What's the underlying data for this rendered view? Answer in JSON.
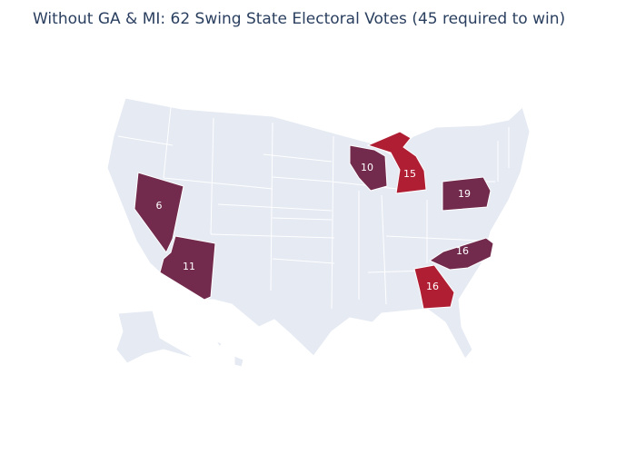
{
  "title": "Without GA & MI: 62 Swing State Electoral Votes (45 required to win)",
  "colors": {
    "background": "#ffffff",
    "base_state": "#e5eaf3",
    "swing_kept": "#722a4d",
    "swing_removed": "#b01e34",
    "title": "#2a3f5f"
  },
  "states": [
    {
      "id": "NV",
      "votes": 6,
      "category": "kept"
    },
    {
      "id": "AZ",
      "votes": 11,
      "category": "kept"
    },
    {
      "id": "WI",
      "votes": 10,
      "category": "kept"
    },
    {
      "id": "MI",
      "votes": 15,
      "category": "removed"
    },
    {
      "id": "PA",
      "votes": 19,
      "category": "kept"
    },
    {
      "id": "NC",
      "votes": 16,
      "category": "kept"
    },
    {
      "id": "GA",
      "votes": 16,
      "category": "removed"
    }
  ]
}
